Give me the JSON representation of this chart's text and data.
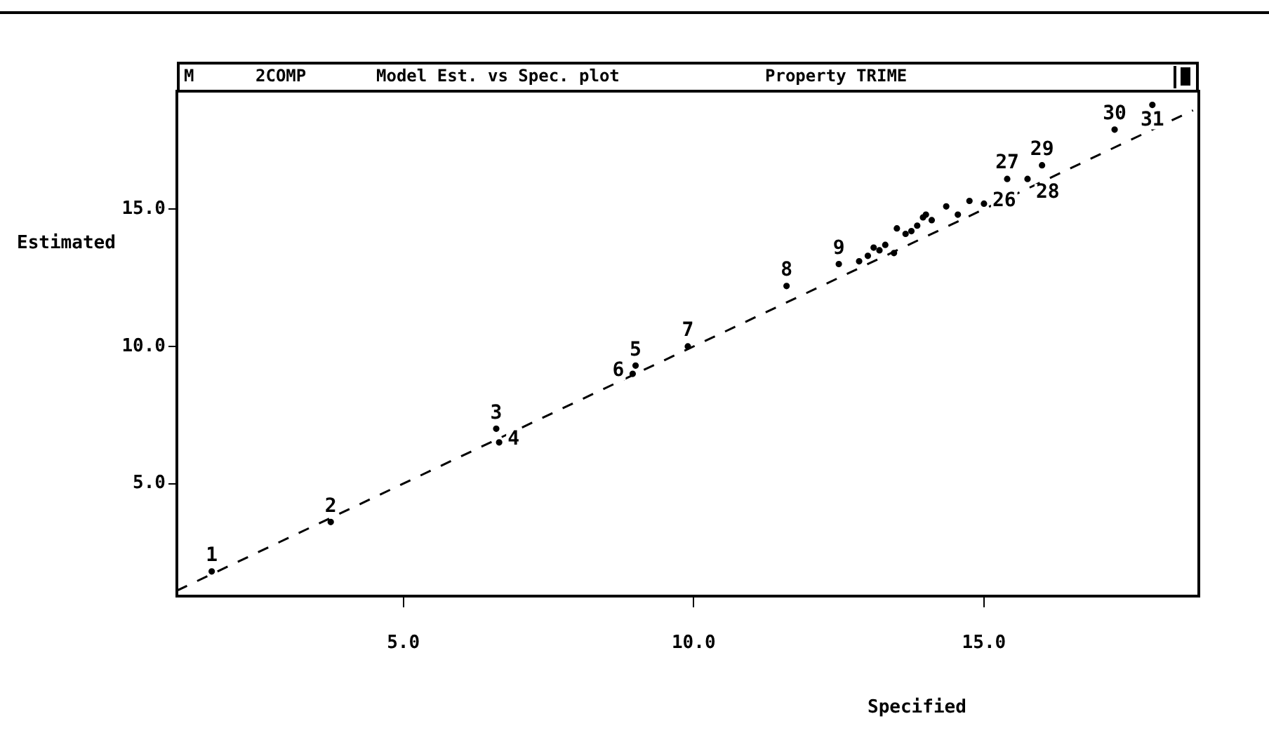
{
  "chart_data": {
    "type": "scatter",
    "title": "2COMP",
    "subtitle": "Model Est. vs Spec. plot",
    "annotations": [
      "M",
      "Property TRIME",
      {
        "text": "1",
        "x": 1.7,
        "y": 1.8
      },
      {
        "text": "2",
        "x": 3.75,
        "y": 3.6
      },
      {
        "text": "3",
        "x": 6.6,
        "y": 7.0
      },
      {
        "text": "4",
        "x": 6.65,
        "y": 6.5
      },
      {
        "text": "5",
        "x": 9.0,
        "y": 9.3
      },
      {
        "text": "6",
        "x": 8.95,
        "y": 9.0
      },
      {
        "text": "7",
        "x": 9.9,
        "y": 10.0
      },
      {
        "text": "8",
        "x": 11.6,
        "y": 12.2
      },
      {
        "text": "9",
        "x": 12.5,
        "y": 13.0
      },
      {
        "text": "26",
        "x": 15.0,
        "y": 15.2
      },
      {
        "text": "27",
        "x": 15.4,
        "y": 16.1
      },
      {
        "text": "28",
        "x": 15.75,
        "y": 16.1
      },
      {
        "text": "29",
        "x": 16.0,
        "y": 16.6
      },
      {
        "text": "30",
        "x": 17.25,
        "y": 17.9
      },
      {
        "text": "31",
        "x": 17.9,
        "y": 18.8
      }
    ],
    "xlabel": "Specified",
    "ylabel": "Estimated",
    "xlim": [
      1.1,
      18.7
    ],
    "ylim": [
      0.9,
      19.3
    ],
    "xticks": [
      {
        "value": 5,
        "label": "5.0"
      },
      {
        "value": 10,
        "label": "10.0"
      },
      {
        "value": 15,
        "label": "15.0"
      }
    ],
    "yticks": [
      {
        "value": 5,
        "label": "5.0"
      },
      {
        "value": 10,
        "label": "10.0"
      },
      {
        "value": 15,
        "label": "15.0"
      }
    ],
    "grid": false,
    "legend": false,
    "series": [
      {
        "color": "#000000",
        "marker": "circle",
        "x": [
          1.7,
          3.75,
          6.6,
          6.65,
          9.0,
          8.95,
          9.9,
          11.6,
          12.5,
          12.85,
          13.0,
          13.1,
          13.2,
          13.45,
          13.3,
          13.5,
          13.65,
          13.75,
          13.85,
          13.95,
          14.0,
          14.1,
          14.35,
          14.55,
          14.75,
          15.0,
          15.4,
          15.75,
          16.0,
          17.25,
          17.9
        ],
        "values": [
          1.8,
          3.6,
          7.0,
          6.5,
          9.3,
          9.0,
          10.0,
          12.2,
          13.0,
          13.1,
          13.3,
          13.6,
          13.5,
          13.4,
          13.7,
          14.3,
          14.1,
          14.2,
          14.4,
          14.7,
          14.8,
          14.6,
          15.1,
          14.8,
          15.3,
          15.2,
          16.1,
          16.1,
          16.6,
          17.9,
          18.8
        ]
      },
      {
        "type": "line",
        "color": "#000000",
        "line_style": "dashed",
        "x": [
          1.1,
          18.6
        ],
        "values": [
          1.1,
          18.6
        ]
      }
    ]
  }
}
